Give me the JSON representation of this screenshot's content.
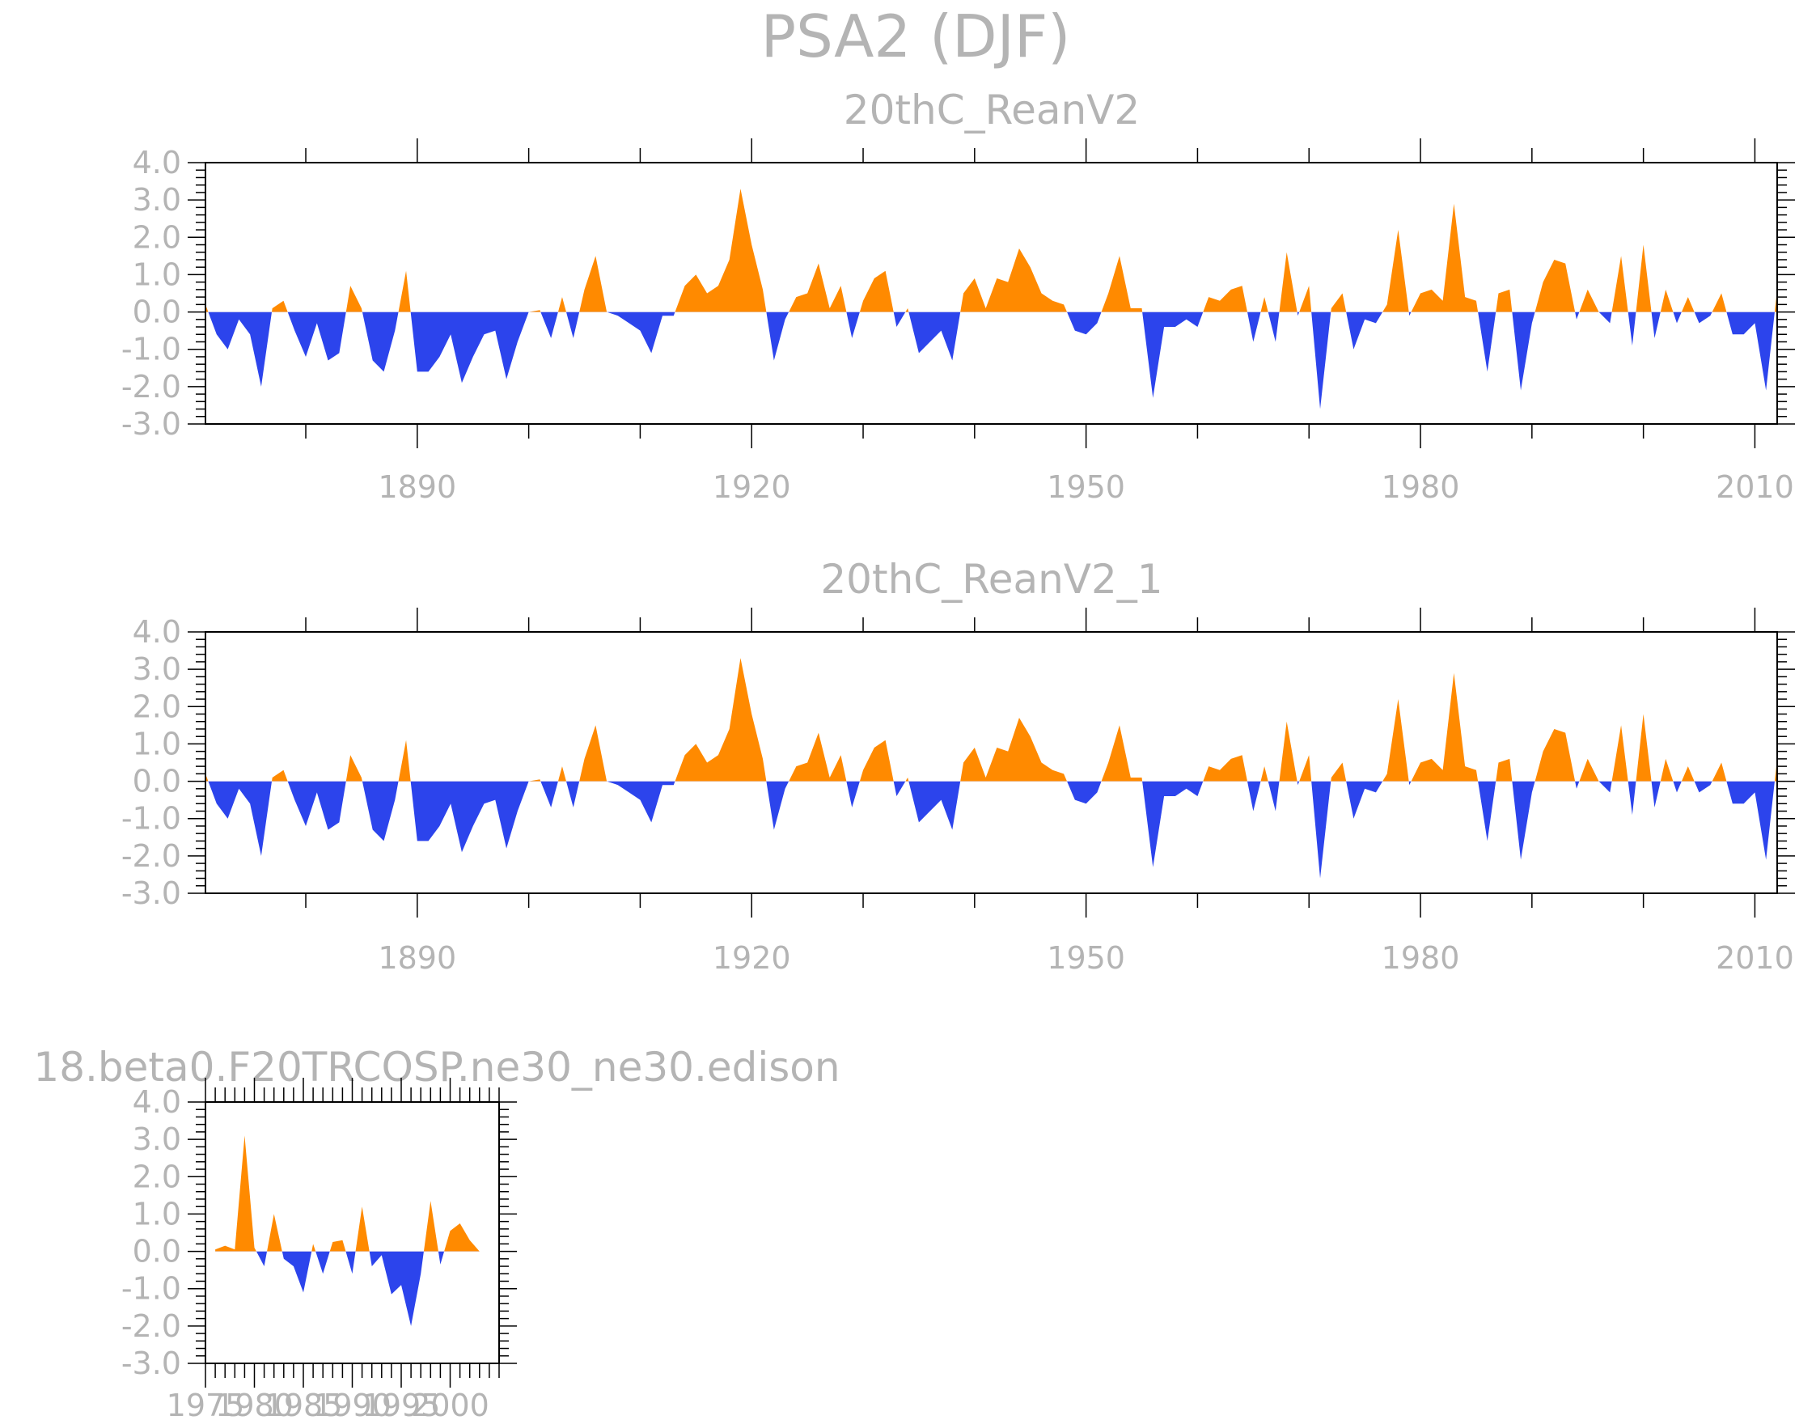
{
  "figure": {
    "title": "PSA2 (DJF)"
  },
  "colors": {
    "positive": "#ff8a00",
    "negative": "#2c44ec",
    "frame": "#000000",
    "text": "#b4b4b4"
  },
  "chart_data": [
    {
      "type": "area",
      "title": "20thC_ReanV2",
      "xlabel": "",
      "ylabel": "",
      "ylim": [
        -3.0,
        4.0
      ],
      "xlim": [
        1871,
        2012
      ],
      "yticks": [
        "4.0",
        "3.0",
        "2.0",
        "1.0",
        "0.0",
        "-1.0",
        "-2.0",
        "-3.0"
      ],
      "xticks": [
        "1890",
        "1920",
        "1950",
        "1980",
        "2010"
      ],
      "fill": "positive values orange above zero, negative values blue below zero",
      "x": [
        1871,
        1872,
        1873,
        1874,
        1875,
        1876,
        1877,
        1878,
        1879,
        1880,
        1881,
        1882,
        1883,
        1884,
        1885,
        1886,
        1887,
        1888,
        1889,
        1890,
        1891,
        1892,
        1893,
        1894,
        1895,
        1896,
        1897,
        1898,
        1899,
        1900,
        1901,
        1902,
        1903,
        1904,
        1905,
        1906,
        1907,
        1908,
        1909,
        1910,
        1911,
        1912,
        1913,
        1914,
        1915,
        1916,
        1917,
        1918,
        1919,
        1920,
        1921,
        1922,
        1923,
        1924,
        1925,
        1926,
        1927,
        1928,
        1929,
        1930,
        1931,
        1932,
        1933,
        1934,
        1935,
        1936,
        1937,
        1938,
        1939,
        1940,
        1941,
        1942,
        1943,
        1944,
        1945,
        1946,
        1947,
        1948,
        1949,
        1950,
        1951,
        1952,
        1953,
        1954,
        1955,
        1956,
        1957,
        1958,
        1959,
        1960,
        1961,
        1962,
        1963,
        1964,
        1965,
        1966,
        1967,
        1968,
        1969,
        1970,
        1971,
        1972,
        1973,
        1974,
        1975,
        1976,
        1977,
        1978,
        1979,
        1980,
        1981,
        1982,
        1983,
        1984,
        1985,
        1986,
        1987,
        1988,
        1989,
        1990,
        1991,
        1992,
        1993,
        1994,
        1995,
        1996,
        1997,
        1998,
        1999,
        2000,
        2001,
        2002,
        2003,
        2004,
        2005,
        2006,
        2007,
        2008,
        2009,
        2010,
        2011,
        2012
      ],
      "values": [
        0.2,
        -0.6,
        -1.0,
        -0.2,
        -0.6,
        -2.0,
        0.1,
        0.3,
        -0.5,
        -1.2,
        -0.3,
        -1.3,
        -1.1,
        0.7,
        0.1,
        -1.3,
        -1.6,
        -0.5,
        1.1,
        -1.6,
        -1.6,
        -1.2,
        -0.6,
        -1.9,
        -1.2,
        -0.6,
        -0.5,
        -1.8,
        -0.8,
        0.0,
        0.05,
        -0.7,
        0.4,
        -0.7,
        0.6,
        1.5,
        0.0,
        -0.1,
        -0.3,
        -0.5,
        -1.1,
        -0.1,
        -0.1,
        0.7,
        1.0,
        0.5,
        0.7,
        1.4,
        3.3,
        1.8,
        0.6,
        -1.3,
        -0.2,
        0.4,
        0.5,
        1.3,
        0.1,
        0.7,
        -0.7,
        0.3,
        0.9,
        1.1,
        -0.4,
        0.1,
        -1.1,
        -0.8,
        -0.5,
        -1.3,
        0.5,
        0.9,
        0.1,
        0.9,
        0.8,
        1.7,
        1.2,
        0.5,
        0.3,
        0.2,
        -0.5,
        -0.6,
        -0.3,
        0.5,
        1.5,
        0.1,
        0.1,
        -2.3,
        -0.4,
        -0.4,
        -0.2,
        -0.4,
        0.4,
        0.3,
        0.6,
        0.7,
        -0.8,
        0.4,
        -0.8,
        1.6,
        -0.1,
        0.7,
        -2.6,
        0.1,
        0.5,
        -1.0,
        -0.2,
        -0.3,
        0.2,
        2.2,
        -0.1,
        0.5,
        0.6,
        0.3,
        2.9,
        0.4,
        0.3,
        -1.6,
        0.5,
        0.6,
        -2.1,
        -0.3,
        0.8,
        1.4,
        1.3,
        -0.2,
        0.6,
        0.0,
        -0.3,
        1.5,
        -0.9,
        1.8,
        -0.7,
        0.6,
        -0.3,
        0.4,
        -0.3,
        -0.1,
        0.5,
        -0.6,
        -0.6,
        -0.3,
        -2.1,
        0.6
      ]
    },
    {
      "type": "area",
      "title": "20thC_ReanV2_1",
      "xlabel": "",
      "ylabel": "",
      "ylim": [
        -3.0,
        4.0
      ],
      "xlim": [
        1871,
        2012
      ],
      "yticks": [
        "4.0",
        "3.0",
        "2.0",
        "1.0",
        "0.0",
        "-1.0",
        "-2.0",
        "-3.0"
      ],
      "xticks": [
        "1890",
        "1920",
        "1950",
        "1980",
        "2010"
      ],
      "fill": "positive values orange above zero, negative values blue below zero",
      "x": [
        1871,
        1872,
        1873,
        1874,
        1875,
        1876,
        1877,
        1878,
        1879,
        1880,
        1881,
        1882,
        1883,
        1884,
        1885,
        1886,
        1887,
        1888,
        1889,
        1890,
        1891,
        1892,
        1893,
        1894,
        1895,
        1896,
        1897,
        1898,
        1899,
        1900,
        1901,
        1902,
        1903,
        1904,
        1905,
        1906,
        1907,
        1908,
        1909,
        1910,
        1911,
        1912,
        1913,
        1914,
        1915,
        1916,
        1917,
        1918,
        1919,
        1920,
        1921,
        1922,
        1923,
        1924,
        1925,
        1926,
        1927,
        1928,
        1929,
        1930,
        1931,
        1932,
        1933,
        1934,
        1935,
        1936,
        1937,
        1938,
        1939,
        1940,
        1941,
        1942,
        1943,
        1944,
        1945,
        1946,
        1947,
        1948,
        1949,
        1950,
        1951,
        1952,
        1953,
        1954,
        1955,
        1956,
        1957,
        1958,
        1959,
        1960,
        1961,
        1962,
        1963,
        1964,
        1965,
        1966,
        1967,
        1968,
        1969,
        1970,
        1971,
        1972,
        1973,
        1974,
        1975,
        1976,
        1977,
        1978,
        1979,
        1980,
        1981,
        1982,
        1983,
        1984,
        1985,
        1986,
        1987,
        1988,
        1989,
        1990,
        1991,
        1992,
        1993,
        1994,
        1995,
        1996,
        1997,
        1998,
        1999,
        2000,
        2001,
        2002,
        2003,
        2004,
        2005,
        2006,
        2007,
        2008,
        2009,
        2010,
        2011,
        2012
      ],
      "values": [
        0.2,
        -0.6,
        -1.0,
        -0.2,
        -0.6,
        -2.0,
        0.1,
        0.3,
        -0.5,
        -1.2,
        -0.3,
        -1.3,
        -1.1,
        0.7,
        0.1,
        -1.3,
        -1.6,
        -0.5,
        1.1,
        -1.6,
        -1.6,
        -1.2,
        -0.6,
        -1.9,
        -1.2,
        -0.6,
        -0.5,
        -1.8,
        -0.8,
        0.0,
        0.05,
        -0.7,
        0.4,
        -0.7,
        0.6,
        1.5,
        0.0,
        -0.1,
        -0.3,
        -0.5,
        -1.1,
        -0.1,
        -0.1,
        0.7,
        1.0,
        0.5,
        0.7,
        1.4,
        3.3,
        1.8,
        0.6,
        -1.3,
        -0.2,
        0.4,
        0.5,
        1.3,
        0.1,
        0.7,
        -0.7,
        0.3,
        0.9,
        1.1,
        -0.4,
        0.1,
        -1.1,
        -0.8,
        -0.5,
        -1.3,
        0.5,
        0.9,
        0.1,
        0.9,
        0.8,
        1.7,
        1.2,
        0.5,
        0.3,
        0.2,
        -0.5,
        -0.6,
        -0.3,
        0.5,
        1.5,
        0.1,
        0.1,
        -2.3,
        -0.4,
        -0.4,
        -0.2,
        -0.4,
        0.4,
        0.3,
        0.6,
        0.7,
        -0.8,
        0.4,
        -0.8,
        1.6,
        -0.1,
        0.7,
        -2.6,
        0.1,
        0.5,
        -1.0,
        -0.2,
        -0.3,
        0.2,
        2.2,
        -0.1,
        0.5,
        0.6,
        0.3,
        2.9,
        0.4,
        0.3,
        -1.6,
        0.5,
        0.6,
        -2.1,
        -0.3,
        0.8,
        1.4,
        1.3,
        -0.2,
        0.6,
        0.0,
        -0.3,
        1.5,
        -0.9,
        1.8,
        -0.7,
        0.6,
        -0.3,
        0.4,
        -0.3,
        -0.1,
        0.5,
        -0.6,
        -0.6,
        -0.3,
        -2.1,
        0.6
      ]
    },
    {
      "type": "area",
      "title": "18.beta0.F20TRCOSP.ne30_ne30.edison",
      "xlabel": "",
      "ylabel": "",
      "ylim": [
        -3.0,
        4.0
      ],
      "xlim": [
        1975,
        2005
      ],
      "yticks": [
        "4.0",
        "3.0",
        "2.0",
        "1.0",
        "0.0",
        "-1.0",
        "-2.0",
        "-3.0"
      ],
      "xticks": [
        "1975",
        "1980",
        "1985",
        "1990",
        "1995",
        "2000"
      ],
      "fill": "positive values orange above zero, negative values blue below zero",
      "x": [
        1976,
        1977,
        1978,
        1979,
        1980,
        1981,
        1982,
        1983,
        1984,
        1985,
        1986,
        1987,
        1988,
        1989,
        1990,
        1991,
        1992,
        1993,
        1994,
        1995,
        1996,
        1997,
        1998,
        1999,
        2000,
        2001,
        2002,
        2003,
        2004,
        2005
      ],
      "values": [
        0.05,
        0.15,
        0.05,
        3.1,
        0.1,
        -0.4,
        1.0,
        -0.2,
        -0.4,
        -1.1,
        0.2,
        -0.6,
        0.25,
        0.3,
        -0.6,
        1.2,
        -0.4,
        -0.1,
        -1.15,
        -0.9,
        -2.0,
        -0.6,
        1.35,
        -0.35,
        0.55,
        0.75,
        0.3,
        0.0,
        0.0,
        0.0
      ]
    }
  ]
}
